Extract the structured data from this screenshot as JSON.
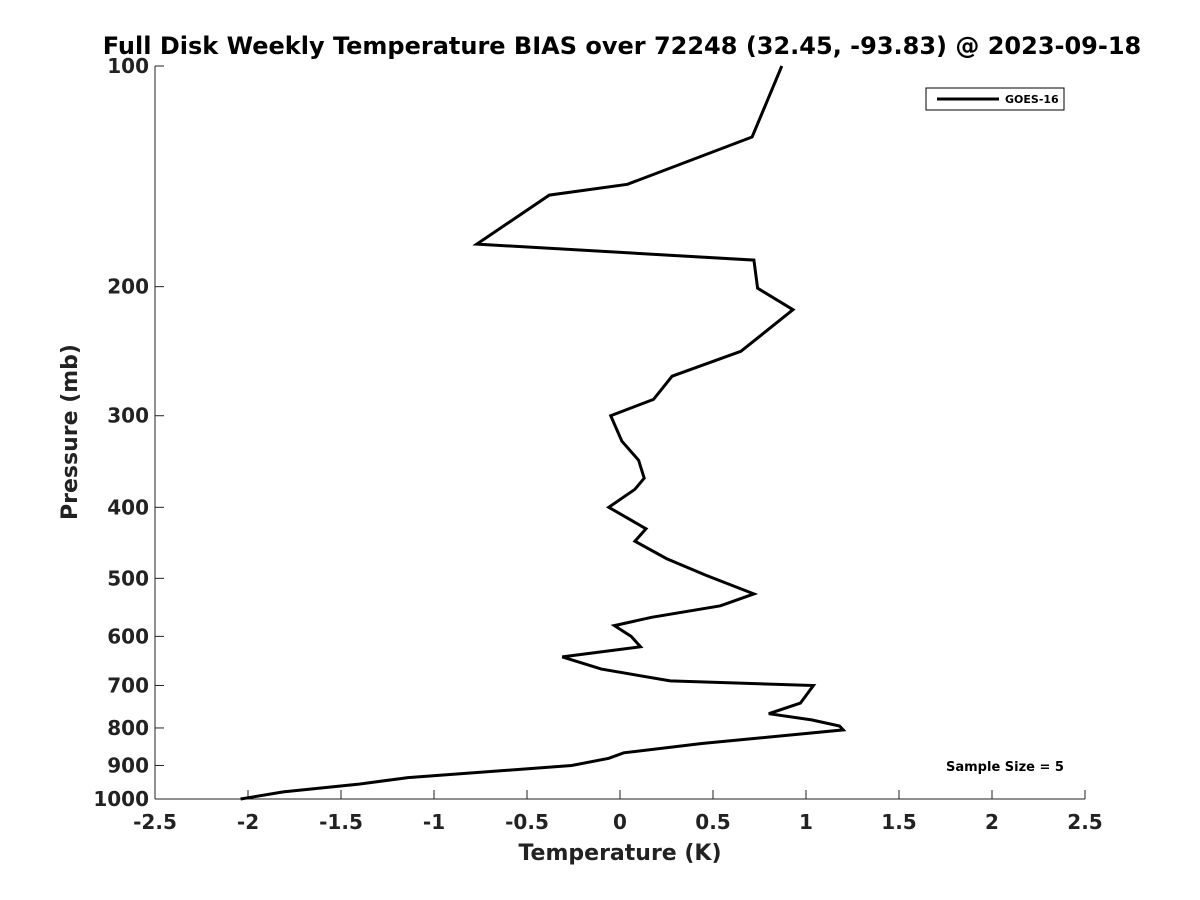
{
  "chart_data": {
    "type": "line",
    "title": "Full Disk Weekly Temperature BIAS over 72248 (32.45, -93.83) @ 2023-09-18",
    "xlabel": "Temperature (K)",
    "ylabel": "Pressure (mb)",
    "xlim": [
      -2.5,
      2.5
    ],
    "ylim": [
      100,
      1000
    ],
    "y_scale": "log",
    "y_reversed": true,
    "x_ticks": [
      "-2.5",
      "-2",
      "-1.5",
      "-1",
      "-0.5",
      "0",
      "0.5",
      "1",
      "1.5",
      "2",
      "2.5"
    ],
    "y_ticks": [
      "100",
      "200",
      "300",
      "400",
      "500",
      "600",
      "700",
      "800",
      "900",
      "1000"
    ],
    "grid": false,
    "legend": {
      "position": "top-right",
      "entries": [
        "GOES-16"
      ]
    },
    "annotation": "Sample Size = 5",
    "series": [
      {
        "name": "GOES-16",
        "color": "#000000",
        "points": [
          [
            0.87,
            100
          ],
          [
            0.71,
            125
          ],
          [
            0.04,
            145
          ],
          [
            -0.38,
            150
          ],
          [
            -0.77,
            175
          ],
          [
            0.72,
            184
          ],
          [
            0.74,
            201
          ],
          [
            0.93,
            215
          ],
          [
            0.65,
            245
          ],
          [
            0.28,
            265
          ],
          [
            0.18,
            285
          ],
          [
            -0.05,
            300
          ],
          [
            0.01,
            325
          ],
          [
            0.1,
            345
          ],
          [
            0.13,
            365
          ],
          [
            0.08,
            378
          ],
          [
            -0.06,
            400
          ],
          [
            0.14,
            428
          ],
          [
            0.08,
            445
          ],
          [
            0.25,
            470
          ],
          [
            0.46,
            495
          ],
          [
            0.72,
            525
          ],
          [
            0.54,
            545
          ],
          [
            0.17,
            565
          ],
          [
            -0.03,
            580
          ],
          [
            0.06,
            600
          ],
          [
            0.11,
            620
          ],
          [
            -0.31,
            640
          ],
          [
            -0.1,
            665
          ],
          [
            0.27,
            690
          ],
          [
            1.04,
            700
          ],
          [
            0.97,
            740
          ],
          [
            0.8,
            765
          ],
          [
            1.03,
            780
          ],
          [
            1.18,
            795
          ],
          [
            1.2,
            805
          ],
          [
            0.44,
            840
          ],
          [
            0.02,
            865
          ],
          [
            -0.06,
            880
          ],
          [
            -0.26,
            900
          ],
          [
            -1.14,
            935
          ],
          [
            -1.41,
            955
          ],
          [
            -1.81,
            978
          ],
          [
            -2.04,
            1000
          ]
        ]
      }
    ]
  }
}
